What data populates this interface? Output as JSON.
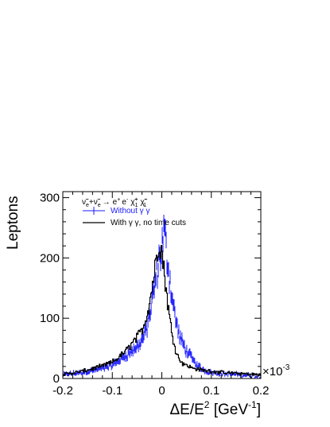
{
  "chart_data": {
    "type": "line",
    "title": "",
    "xlabel": "ΔE/E² [GeV⁻¹]",
    "xlabel_parts": {
      "main": "ΔE/E",
      "exp": "2",
      "bracket_open": " [GeV",
      "unit_exp": "-1",
      "bracket_close": "]"
    },
    "ylabel": "Leptons",
    "x_multiplier": "×10",
    "x_multiplier_exp": "-3",
    "xlim": [
      -0.2,
      0.2
    ],
    "ylim": [
      0,
      310
    ],
    "x_ticks": [
      -0.2,
      -0.1,
      0,
      0.1,
      0.2
    ],
    "x_tick_labels": [
      "-0.2",
      "-0.1",
      "0",
      "0.1",
      "0.2"
    ],
    "y_ticks": [
      0,
      100,
      200,
      300
    ],
    "y_tick_labels": [
      "0",
      "100",
      "200",
      "300"
    ],
    "grid": false,
    "legend": {
      "placement": "top-left",
      "header": {
        "nu1": "ν̃",
        "nu1_sub": "e",
        "plus": "+",
        "nu2": "ν̃",
        "nu2_sub": "e",
        "arrow": "→",
        "ep": "e",
        "ep_sup": "+",
        "em": "e",
        "em_sup": "-",
        "chi1": "χ̃",
        "chi1_sup": "+",
        "chi1_sub": "1",
        "chi2": "χ̃",
        "chi2_sup": "-",
        "chi2_sub": "1"
      },
      "entries": [
        "Without γ γ",
        "With γ γ, no time cuts"
      ]
    },
    "series": [
      {
        "name": "Without γ γ",
        "color": "#1a1aff",
        "style": "errorbar",
        "points": [
          [
            -0.2,
            6
          ],
          [
            -0.18,
            8
          ],
          [
            -0.16,
            10
          ],
          [
            -0.14,
            13
          ],
          [
            -0.12,
            17
          ],
          [
            -0.1,
            22
          ],
          [
            -0.09,
            28
          ],
          [
            -0.08,
            34
          ],
          [
            -0.07,
            40
          ],
          [
            -0.06,
            46
          ],
          [
            -0.05,
            52
          ],
          [
            -0.04,
            64
          ],
          [
            -0.035,
            72
          ],
          [
            -0.03,
            84
          ],
          [
            -0.025,
            105
          ],
          [
            -0.02,
            125
          ],
          [
            -0.015,
            150
          ],
          [
            -0.01,
            175
          ],
          [
            -0.005,
            198
          ],
          [
            0.0,
            218
          ],
          [
            0.005,
            245
          ],
          [
            0.01,
            208
          ],
          [
            0.015,
            172
          ],
          [
            0.02,
            140
          ],
          [
            0.025,
            112
          ],
          [
            0.03,
            90
          ],
          [
            0.035,
            72
          ],
          [
            0.04,
            62
          ],
          [
            0.05,
            46
          ],
          [
            0.06,
            34
          ],
          [
            0.07,
            23
          ],
          [
            0.08,
            16
          ],
          [
            0.09,
            12
          ],
          [
            0.1,
            10
          ],
          [
            0.12,
            8
          ],
          [
            0.14,
            7
          ],
          [
            0.16,
            6
          ],
          [
            0.18,
            5
          ],
          [
            0.2,
            4
          ]
        ]
      },
      {
        "name": "With γ γ, no time cuts",
        "color": "#000000",
        "style": "step",
        "points": [
          [
            -0.2,
            7
          ],
          [
            -0.18,
            9
          ],
          [
            -0.16,
            12
          ],
          [
            -0.14,
            16
          ],
          [
            -0.12,
            21
          ],
          [
            -0.1,
            27
          ],
          [
            -0.09,
            33
          ],
          [
            -0.08,
            40
          ],
          [
            -0.07,
            48
          ],
          [
            -0.06,
            58
          ],
          [
            -0.05,
            68
          ],
          [
            -0.04,
            80
          ],
          [
            -0.035,
            92
          ],
          [
            -0.03,
            106
          ],
          [
            -0.025,
            125
          ],
          [
            -0.02,
            150
          ],
          [
            -0.015,
            176
          ],
          [
            -0.01,
            205
          ],
          [
            -0.005,
            232
          ],
          [
            0.0,
            212
          ],
          [
            0.005,
            175
          ],
          [
            0.01,
            140
          ],
          [
            0.015,
            105
          ],
          [
            0.02,
            78
          ],
          [
            0.025,
            58
          ],
          [
            0.03,
            42
          ],
          [
            0.035,
            33
          ],
          [
            0.04,
            27
          ],
          [
            0.05,
            22
          ],
          [
            0.06,
            18
          ],
          [
            0.07,
            16
          ],
          [
            0.08,
            14
          ],
          [
            0.09,
            13
          ],
          [
            0.1,
            12
          ],
          [
            0.12,
            10
          ],
          [
            0.14,
            9
          ],
          [
            0.16,
            8
          ],
          [
            0.18,
            7
          ],
          [
            0.2,
            6
          ]
        ]
      }
    ]
  }
}
